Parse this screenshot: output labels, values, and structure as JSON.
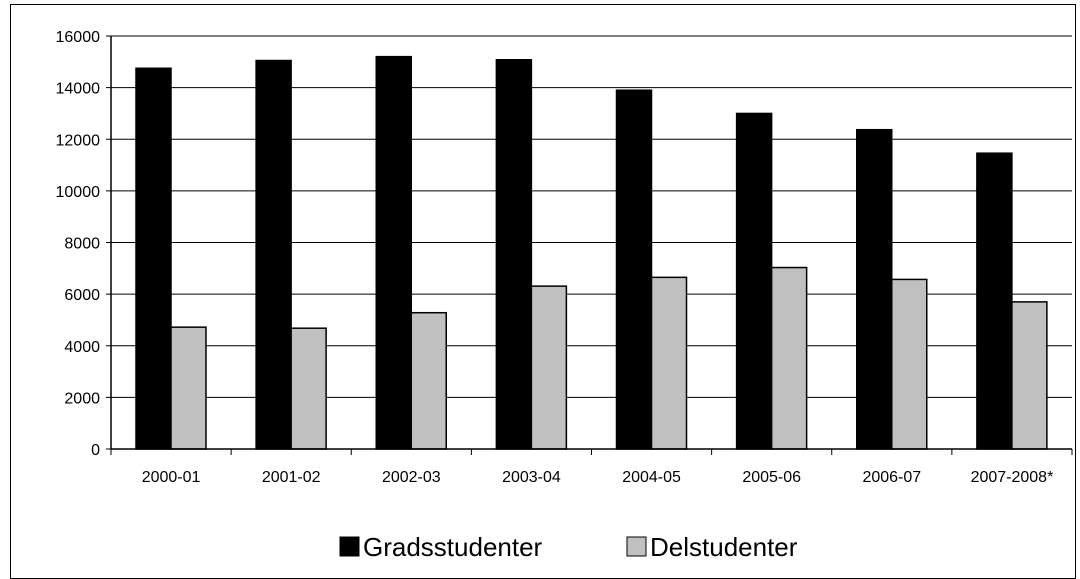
{
  "chart_data": {
    "type": "bar",
    "categories": [
      "2000-01",
      "2001-02",
      "2002-03",
      "2003-04",
      "2004-05",
      "2005-06",
      "2006-07",
      "2007-2008*"
    ],
    "series": [
      {
        "name": "Gradsstudenter",
        "values": [
          14750,
          15050,
          15200,
          15080,
          13900,
          13000,
          12370,
          11460
        ],
        "color": "#000000"
      },
      {
        "name": "Delstudenter",
        "values": [
          4720,
          4680,
          5280,
          6310,
          6650,
          7030,
          6570,
          5700
        ],
        "color": "#c0c0c0"
      }
    ],
    "yticks": [
      "0",
      "2000",
      "4000",
      "6000",
      "8000",
      "10000",
      "12000",
      "14000",
      "16000"
    ],
    "ylim": [
      0,
      16000
    ],
    "grid": true,
    "legend_position": "bottom"
  }
}
